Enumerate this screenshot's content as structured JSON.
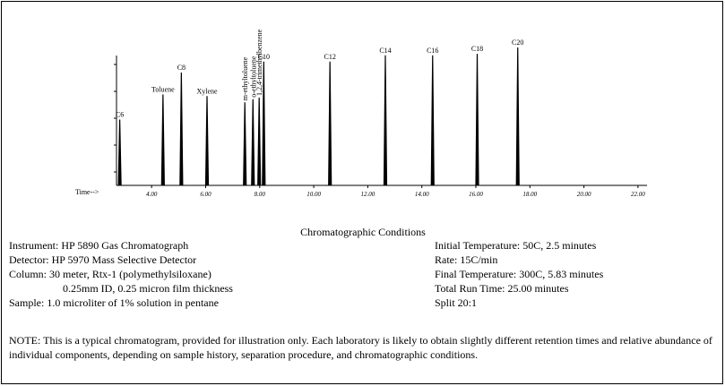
{
  "chart_data": {
    "type": "line",
    "xlabel": "Time-->",
    "xlim": [
      2.6,
      24.0
    ],
    "ticks": [
      4.0,
      6.0,
      8.0,
      10.0,
      12.0,
      14.0,
      16.0,
      18.0,
      20.0,
      22.0
    ],
    "tick_labels": [
      "4.00",
      "6.00",
      "8.00",
      "10.00",
      "12.00",
      "14.00",
      "16.00",
      "18.00",
      "20.00",
      "22.00"
    ],
    "peaks": [
      {
        "label": "C6",
        "time": 2.82,
        "height": 0.42,
        "orient": "h"
      },
      {
        "label": "Toluene",
        "time": 4.42,
        "height": 0.58,
        "orient": "h"
      },
      {
        "label": "C8",
        "time": 5.1,
        "height": 0.72,
        "orient": "h"
      },
      {
        "label": "Xylene",
        "time": 6.05,
        "height": 0.57,
        "orient": "h"
      },
      {
        "label": "m-ethyltoluene",
        "time": 7.45,
        "height": 0.53,
        "orient": "v"
      },
      {
        "label": "o-ethyltoluene",
        "time": 7.75,
        "height": 0.55,
        "orient": "v"
      },
      {
        "label": "1,2,4-trimethylbenzene",
        "time": 7.98,
        "height": 0.56,
        "orient": "v"
      },
      {
        "label": "C10",
        "time": 8.15,
        "height": 0.79,
        "orient": "h"
      },
      {
        "label": "C12",
        "time": 10.6,
        "height": 0.79,
        "orient": "h"
      },
      {
        "label": "C14",
        "time": 12.65,
        "height": 0.83,
        "orient": "h"
      },
      {
        "label": "C16",
        "time": 14.4,
        "height": 0.83,
        "orient": "h"
      },
      {
        "label": "C18",
        "time": 16.05,
        "height": 0.84,
        "orient": "h"
      },
      {
        "label": "C20",
        "time": 17.55,
        "height": 0.88,
        "orient": "h"
      }
    ]
  },
  "conditions": {
    "title": "Chromatographic Conditions",
    "left": [
      "Instrument:  HP 5890 Gas Chromatograph",
      "Detector:  HP 5970 Mass Selective Detector",
      "Column:    30 meter, Rtx-1 (polymethylsiloxane)",
      "0.25mm ID, 0.25 micron film thickness",
      "Sample: 1.0 microliter of 1% solution in pentane"
    ],
    "right": [
      "Initial Temperature:  50C, 2.5 minutes",
      "Rate: 15C/min",
      "Final Temperature:  300C, 5.83 minutes",
      "Total Run Time:  25.00 minutes",
      "Split  20:1"
    ]
  },
  "note": "NOTE:  This is a typical chromatogram, provided for illustration only.  Each laboratory is likely to obtain slightly different retention times and relative abundance of individual components, depending on sample history, separation procedure, and chromatographic conditions."
}
